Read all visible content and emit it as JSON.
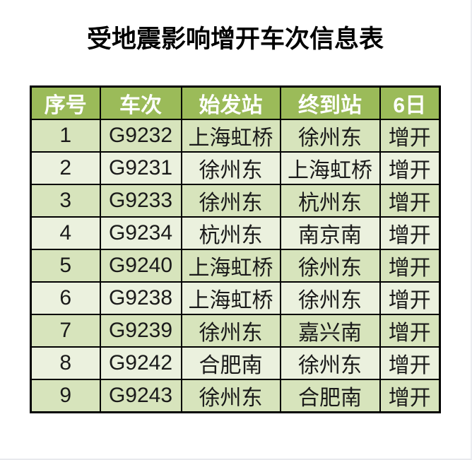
{
  "page": {
    "title": "受地震影响增开车次信息表"
  },
  "colors": {
    "header_bg": "#9BBB59",
    "header_text": "#FFFFFF",
    "row_odd_bg": "#D7E4BC",
    "row_even_bg": "#EBF1DE",
    "border": "#000000",
    "cell_text": "#1A1A1A",
    "page_edge": "#ECEDF1"
  },
  "chart_data": {
    "type": "table",
    "title": "受地震影响增开车次信息表",
    "columns": [
      "序号",
      "车次",
      "始发站",
      "终到站",
      "6日"
    ],
    "rows": [
      [
        "1",
        "G9232",
        "上海虹桥",
        "徐州东",
        "增开"
      ],
      [
        "2",
        "G9231",
        "徐州东",
        "上海虹桥",
        "增开"
      ],
      [
        "3",
        "G9233",
        "徐州东",
        "杭州东",
        "增开"
      ],
      [
        "4",
        "G9234",
        "杭州东",
        "南京南",
        "增开"
      ],
      [
        "5",
        "G9240",
        "上海虹桥",
        "徐州东",
        "增开"
      ],
      [
        "6",
        "G9238",
        "上海虹桥",
        "徐州东",
        "增开"
      ],
      [
        "7",
        "G9239",
        "徐州东",
        "嘉兴南",
        "增开"
      ],
      [
        "8",
        "G9242",
        "合肥南",
        "徐州东",
        "增开"
      ],
      [
        "9",
        "G9243",
        "徐州东",
        "合肥南",
        "增开"
      ]
    ],
    "layout": {
      "grid": true,
      "header_style": "olive-green, white bold text",
      "body_style": "alternating light green rows, black grid borders"
    }
  }
}
